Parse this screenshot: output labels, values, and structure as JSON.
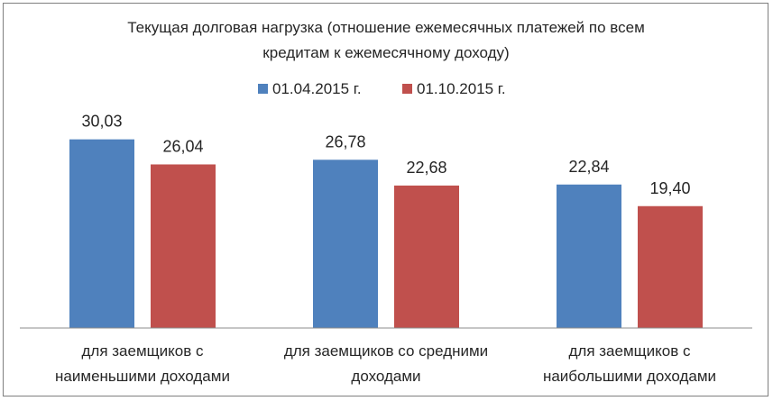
{
  "chart_data": {
    "type": "bar",
    "title_lines": [
      "Текущая долговая нагрузка (отношение ежемесячных платежей по всем",
      "кредитам к ежемесячному доходу)"
    ],
    "categories": [
      [
        "для заемщиков с",
        "наименьшими доходами"
      ],
      [
        "для заемщиков со средними",
        "доходами"
      ],
      [
        "для заемщиков с",
        "наибольшими доходами"
      ]
    ],
    "series": [
      {
        "name": "01.04.2015  г.",
        "color": "#4f81bd",
        "values": [
          30.03,
          26.78,
          22.84
        ],
        "labels": [
          "30,03",
          "26,78",
          "22,84"
        ]
      },
      {
        "name": "01.10.2015  г.",
        "color": "#c0504d",
        "values": [
          26.04,
          22.68,
          19.4
        ],
        "labels": [
          "26,04",
          "22,68",
          "19,40"
        ]
      }
    ],
    "ylim": [
      0,
      35
    ],
    "legend_position": "top",
    "grid": false
  }
}
